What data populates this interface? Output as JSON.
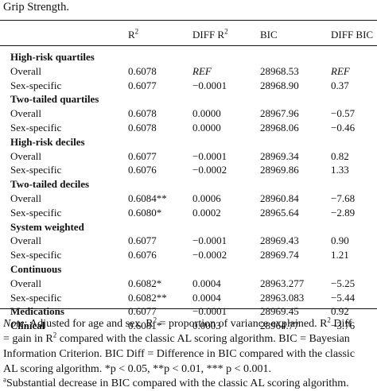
{
  "caption": "Grip Strength.",
  "headers": [
    "",
    "R2",
    "DIFF R2",
    "BIC",
    "DIFF BIC"
  ],
  "groups": [
    {
      "label": "High-risk quartiles",
      "rows": [
        {
          "label": "Overall",
          "r2": "0.6078",
          "diff_r2": "REF",
          "bic": "28968.53",
          "diff_bic": "REF"
        },
        {
          "label": "Sex-specific",
          "r2": "0.6077",
          "diff_r2": "−0.0001",
          "bic": "28968.90",
          "diff_bic": "0.37"
        }
      ]
    },
    {
      "label": "Two-tailed quartiles",
      "rows": [
        {
          "label": "Overall",
          "r2": "0.6078",
          "diff_r2": "0.0000",
          "bic": "28967.96",
          "diff_bic": "−0.57"
        },
        {
          "label": "Sex-specific",
          "r2": "0.6078",
          "diff_r2": "0.0000",
          "bic": "28968.06",
          "diff_bic": "−0.46"
        }
      ]
    },
    {
      "label": "High-risk deciles",
      "rows": [
        {
          "label": "Overall",
          "r2": "0.6077",
          "diff_r2": "−0.0001",
          "bic": "28969.34",
          "diff_bic": "0.82"
        },
        {
          "label": "Sex-specific",
          "r2": "0.6076",
          "diff_r2": "−0.0002",
          "bic": "28969.86",
          "diff_bic": "1.33"
        }
      ]
    },
    {
      "label": "Two-tailed deciles",
      "rows": [
        {
          "label": "Overall",
          "r2": "0.6084**",
          "diff_r2": "0.0006",
          "bic": "28960.84",
          "diff_bic": "−7.68"
        },
        {
          "label": "Sex-specific",
          "r2": "0.6080*",
          "diff_r2": "0.0002",
          "bic": "28965.64",
          "diff_bic": "−2.89"
        }
      ]
    },
    {
      "label": "System weighted",
      "rows": [
        {
          "label": "Overall",
          "r2": "0.6077",
          "diff_r2": "−0.0001",
          "bic": "28969.43",
          "diff_bic": "0.90"
        },
        {
          "label": "Sex-specific",
          "r2": "0.6076",
          "diff_r2": "−0.0002",
          "bic": "28969.74",
          "diff_bic": "1.21"
        }
      ]
    },
    {
      "label": "Continuous",
      "rows": [
        {
          "label": "Overall",
          "r2": "0.6082*",
          "diff_r2": "0.0004",
          "bic": "28963.277",
          "diff_bic": "−5.25"
        },
        {
          "label": "Sex-specific",
          "r2": "0.6082**",
          "diff_r2": "0.0004",
          "bic": "28963.083",
          "diff_bic": "−5.44"
        }
      ]
    }
  ],
  "single_rows": [
    {
      "label": "Medications",
      "r2": "0.6077",
      "diff_r2": "−0.0001",
      "bic": "28969.45",
      "diff_bic": "0.92"
    },
    {
      "label": "Clinical",
      "r2": "0.6081*",
      "diff_r2": "0.0003",
      "bic": "28964.77",
      "diff_bic": "−3.76"
    }
  ],
  "note": {
    "lead": "Note",
    "line1_a": ": Adjusted for age and sex. R",
    "line1_b": " = proportion of variance explained. R",
    "line1_c": " Diff",
    "line2_a": "= gain in R",
    "line2_b": " compared with the classic AL scoring algorithm. BIC = Bayesian",
    "line3": "Information Criterion. BIC Diff = Difference in BIC compared with the classic",
    "line4": "AL scoring algorithm. *p < 0.05, **p < 0.01, *** p < 0.001.",
    "footnote_marker": "a",
    "footnote_text": "Substantial decrease in BIC compared with the classic AL scoring algorithm.",
    "sup2": "2"
  }
}
